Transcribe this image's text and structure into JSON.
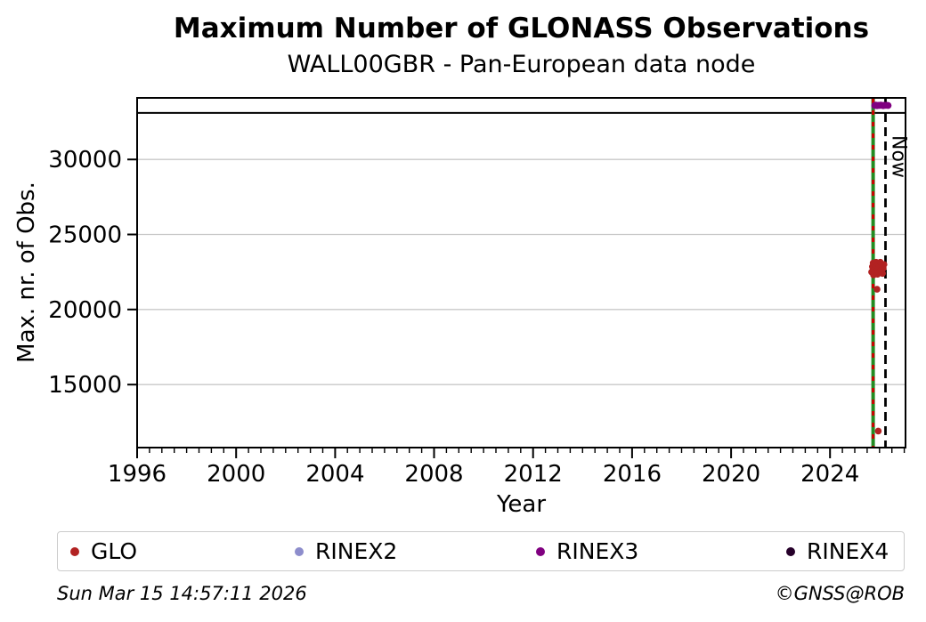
{
  "chart_data": {
    "type": "scatter",
    "title": "Maximum Number of GLONASS Observations",
    "subtitle": "WALL00GBR - Pan-European data node",
    "xlabel": "Year",
    "ylabel": "Max. nr. of Obs.",
    "xlim": [
      1996,
      2027.05
    ],
    "ylim": [
      10800,
      34100
    ],
    "xticks": [
      1996,
      2000,
      2004,
      2008,
      2012,
      2016,
      2020,
      2024
    ],
    "x_minor_tick_step": 0.5,
    "yticks": [
      15000,
      20000,
      25000,
      30000
    ],
    "grid": {
      "horizontal": true,
      "vertical": false,
      "color": "#c8c8c8"
    },
    "max_line": {
      "y": 33100,
      "color": "#000000",
      "width": 2
    },
    "vertical_lines": [
      {
        "name": "event-line-green",
        "x": 2025.74,
        "color": "#228b22",
        "dash": null,
        "width": 4
      },
      {
        "name": "event-line-red-dashed",
        "x": 2025.74,
        "color": "#cc0000",
        "dash": [
          5,
          8
        ],
        "width": 3
      },
      {
        "name": "now-line",
        "x": 2026.24,
        "color": "#000000",
        "dash": [
          10,
          6
        ],
        "width": 2.8,
        "label": "Now"
      }
    ],
    "series": [
      {
        "name": "GLO",
        "color": "#b22222",
        "points": [
          [
            2025.68,
            22500
          ],
          [
            2025.71,
            22850
          ],
          [
            2025.74,
            23100
          ],
          [
            2025.76,
            22300
          ],
          [
            2025.78,
            22650
          ],
          [
            2025.8,
            23000
          ],
          [
            2025.82,
            22450
          ],
          [
            2025.84,
            22800
          ],
          [
            2025.86,
            23150
          ],
          [
            2025.88,
            22550
          ],
          [
            2025.9,
            22900
          ],
          [
            2025.92,
            22350
          ],
          [
            2025.94,
            22700
          ],
          [
            2025.96,
            23050
          ],
          [
            2025.98,
            22500
          ],
          [
            2026.0,
            22850
          ],
          [
            2026.03,
            23150
          ],
          [
            2026.06,
            22600
          ],
          [
            2026.09,
            22950
          ],
          [
            2026.12,
            22400
          ],
          [
            2026.15,
            22750
          ],
          [
            2026.18,
            23000
          ],
          [
            2025.9,
            21350
          ],
          [
            2025.95,
            11900
          ]
        ]
      },
      {
        "name": "RINEX2",
        "color": "#8d8dcc",
        "points": []
      },
      {
        "name": "RINEX3",
        "color": "#800080",
        "points": [
          [
            2025.8,
            33590
          ],
          [
            2025.85,
            33620
          ],
          [
            2025.9,
            33580
          ],
          [
            2025.95,
            33610
          ],
          [
            2026.0,
            33590
          ],
          [
            2026.05,
            33620
          ],
          [
            2026.1,
            33600
          ],
          [
            2026.15,
            33580
          ],
          [
            2026.2,
            33615
          ],
          [
            2026.25,
            33595
          ],
          [
            2026.3,
            33605
          ],
          [
            2026.35,
            33590
          ]
        ]
      },
      {
        "name": "RINEX4",
        "color": "#26002a",
        "points": []
      }
    ]
  },
  "footer": {
    "timestamp": "Sun Mar 15 14:57:11 2026",
    "credit": "©GNSS@ROB"
  }
}
